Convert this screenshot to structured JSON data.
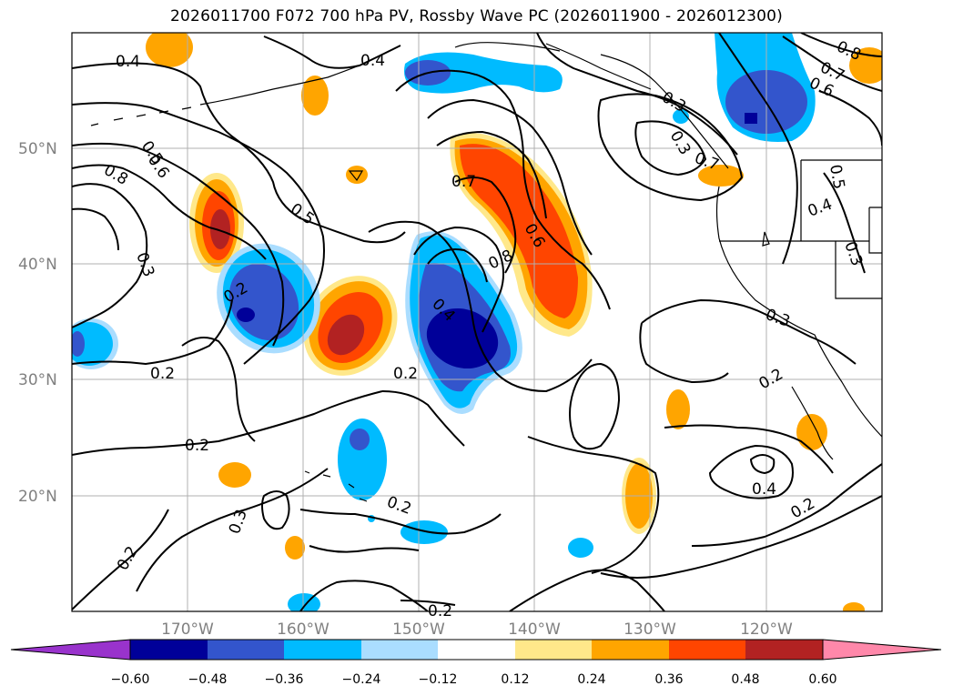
{
  "title": "2026011700 F072 700 hPa PV, Rossby Wave PC (2026011900 - 2026012300)",
  "latitude_labels": [
    "50°N",
    "40°N",
    "30°N",
    "20°N"
  ],
  "longitude_labels": [
    "170°W",
    "160°W",
    "150°W",
    "140°W",
    "130°W",
    "120°W"
  ],
  "contour_labels": [
    "0.4",
    "0.4",
    "0.5",
    "0.6",
    "0.8",
    "0.3",
    "0.5",
    "0.2",
    "0.2",
    "0.7",
    "0.6",
    "0.8",
    "0.4",
    "0.2",
    "0.3",
    "0.8",
    "0.7",
    "0.6",
    "0.3",
    "0.7",
    "0.5",
    "0.4",
    "0.3",
    "0.3",
    "0.2",
    "0.2",
    "0.4",
    "0.2",
    "0.3",
    "0.2",
    "0.2",
    "0.2"
  ],
  "colorbar": {
    "ticks": [
      "−0.60",
      "−0.48",
      "−0.36",
      "−0.24",
      "−0.12",
      "0.12",
      "0.24",
      "0.36",
      "0.48",
      "0.60"
    ],
    "colors": [
      "#9933cc",
      "#000099",
      "#3355cc",
      "#00bbff",
      "#aaddff",
      "#ffffff",
      "#ffe88a",
      "#ffa500",
      "#ff4500",
      "#b22222",
      "#ff88aa"
    ]
  }
}
